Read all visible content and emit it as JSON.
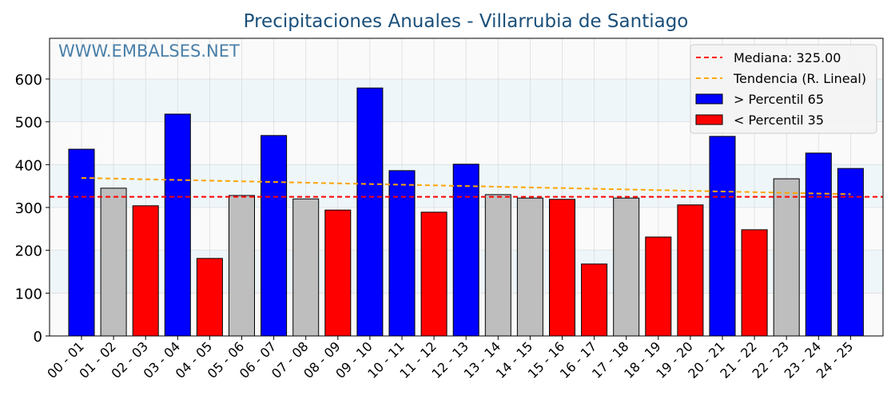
{
  "chart_data": {
    "type": "bar",
    "title": "Precipitaciones Anuales - Villarrubia de Santiago",
    "watermark": "WWW.EMBALSES.NET",
    "xlabel": "",
    "ylabel": "",
    "ylim": [
      0,
      695
    ],
    "yticks": [
      0,
      100,
      200,
      300,
      400,
      500,
      600
    ],
    "categories": [
      "00 - 01",
      "01 - 02",
      "02 - 03",
      "03 - 04",
      "04 - 05",
      "05 - 06",
      "06 - 07",
      "07 - 08",
      "08 - 09",
      "09 - 10",
      "10 - 11",
      "11 - 12",
      "12 - 13",
      "13 - 14",
      "14 - 15",
      "15 - 16",
      "16 - 17",
      "17 - 18",
      "18 - 19",
      "19 - 20",
      "20 - 21",
      "21 - 22",
      "22 - 23",
      "23 - 24",
      "24 - 25"
    ],
    "values": [
      436,
      345,
      304,
      518,
      181,
      328,
      468,
      320,
      294,
      579,
      386,
      289,
      401,
      330,
      322,
      319,
      168,
      322,
      231,
      306,
      466,
      248,
      367,
      427,
      391
    ],
    "classes": [
      "high",
      "mid",
      "low",
      "high",
      "low",
      "mid",
      "high",
      "mid",
      "low",
      "high",
      "high",
      "low",
      "high",
      "mid",
      "mid",
      "low",
      "low",
      "mid",
      "low",
      "low",
      "high",
      "low",
      "mid",
      "high",
      "high"
    ],
    "colors": {
      "high": "#0000ff",
      "mid": "#bebebe",
      "low": "#ff0000",
      "median": "#ff0000",
      "trend": "#ffa500",
      "title": "#1a4f7a",
      "watermark": "#4a7fa8"
    },
    "median": 325.0,
    "trend": [
      369,
      331
    ],
    "legend": {
      "position": "top-right",
      "items": [
        "Mediana: 325.00",
        "Tendencia (R. Lineal)",
        " > Percentil 65",
        " < Percentil 35"
      ]
    }
  }
}
